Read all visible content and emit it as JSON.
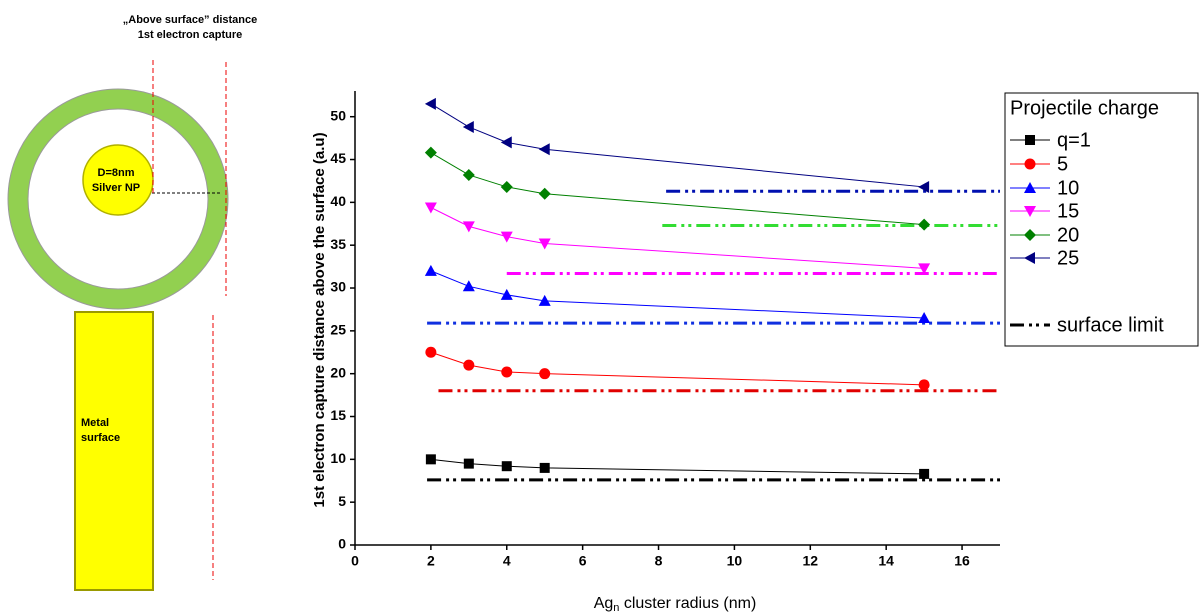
{
  "diagram": {
    "title": [
      "„Above surface” distance",
      "1st electron capture"
    ],
    "nanoparticle_label": [
      "D=8nm",
      "Silver  NP"
    ],
    "surface_label": [
      "Metal",
      "surface"
    ]
  },
  "chart_data": {
    "type": "line",
    "y_label": "1st electron capture distance above the surface (a.u)",
    "x_label": {
      "base": "Ag",
      "subscript": "n",
      "rest": " cluster radius (nm)"
    },
    "legend_title": "Projectile charge",
    "x": [
      2,
      3,
      4,
      5,
      15
    ],
    "series": [
      {
        "name": "q=1",
        "color": "#000000",
        "marker": "square",
        "values": [
          10,
          9.5,
          9.2,
          9.0,
          8.3
        ]
      },
      {
        "name": "5",
        "color": "#ff0000",
        "marker": "circle",
        "values": [
          22.5,
          21,
          20.2,
          20,
          18.7
        ]
      },
      {
        "name": "10",
        "color": "#0000ff",
        "marker": "triangle-up",
        "values": [
          32,
          30.2,
          29.2,
          28.5,
          26.5
        ]
      },
      {
        "name": "15",
        "color": "#ff00ff",
        "marker": "triangle-down",
        "values": [
          39.4,
          37.2,
          36,
          35.2,
          32.3
        ]
      },
      {
        "name": "20",
        "color": "#008000",
        "marker": "diamond",
        "values": [
          45.8,
          43.2,
          41.8,
          41,
          37.4
        ]
      },
      {
        "name": "25",
        "color": "#000080",
        "marker": "triangle-left",
        "values": [
          51.5,
          48.8,
          47,
          46.2,
          41.8
        ]
      }
    ],
    "limits": {
      "name": "surface limit",
      "color": "#000000",
      "lines": [
        {
          "x": [
            1.9,
            17
          ],
          "y": 7.6,
          "color": "#000000"
        },
        {
          "x": [
            2.2,
            17
          ],
          "y": 18.0,
          "color": "#e00000"
        },
        {
          "x": [
            1.9,
            17
          ],
          "y": 25.9,
          "color": "#1030e0"
        },
        {
          "x": [
            4,
            17
          ],
          "y": 31.7,
          "color": "#ff00ff"
        },
        {
          "x": [
            8.1,
            17
          ],
          "y": 37.3,
          "color": "#33dd33"
        },
        {
          "x": [
            8.2,
            17
          ],
          "y": 41.3,
          "color": "#0010b0"
        }
      ]
    },
    "xlim": [
      0,
      17
    ],
    "ylim": [
      0,
      53
    ],
    "xticks": [
      0,
      2,
      4,
      6,
      8,
      10,
      12,
      14,
      16
    ],
    "yticks": [
      0,
      5,
      10,
      15,
      20,
      25,
      30,
      35,
      40,
      45,
      50
    ]
  }
}
